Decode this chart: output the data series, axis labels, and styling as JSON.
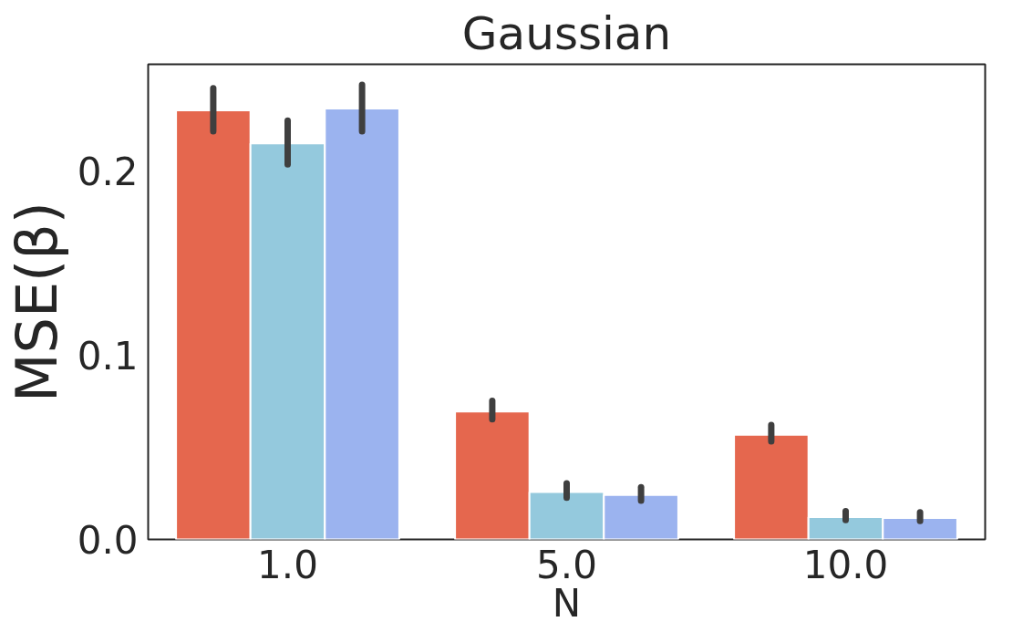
{
  "chart_data": {
    "type": "bar",
    "title": "Gaussian",
    "xlabel": "N",
    "ylabel": "MSE(β)",
    "categories": [
      "1.0",
      "5.0",
      "10.0"
    ],
    "series": [
      {
        "color": "#e5674e",
        "values": [
          0.233,
          0.0695,
          0.0568
        ],
        "errors": [
          [
            0.2216,
            0.245
          ],
          [
            0.0653,
            0.0753
          ],
          [
            0.0532,
            0.0621
          ]
        ]
      },
      {
        "color": "#94c9dd",
        "values": [
          0.215,
          0.0258,
          0.0121
        ],
        "errors": [
          [
            0.2037,
            0.2274
          ],
          [
            0.0226,
            0.0305
          ],
          [
            0.0105,
            0.0153
          ]
        ]
      },
      {
        "color": "#9bb3ef",
        "values": [
          0.234,
          0.0242,
          0.0116
        ],
        "errors": [
          [
            0.2216,
            0.2468
          ],
          [
            0.0211,
            0.0284
          ],
          [
            0.01,
            0.0147
          ]
        ]
      }
    ],
    "ylim": [
      0,
      0.258
    ],
    "yticks": [
      {
        "value": 0,
        "label": "0.0"
      },
      0.1,
      0.2
    ],
    "grid": false
  }
}
